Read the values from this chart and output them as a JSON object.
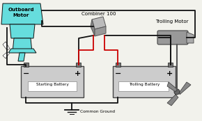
{
  "bg_color": "#f2f2ec",
  "outboard_motor_label": "Outboard\nMotor",
  "trolling_motor_label": "Trolling Motor",
  "combiner_label": "Combiner 100",
  "starting_battery_label": "Starting Battery",
  "trolling_battery_label": "Trolling Battery",
  "common_ground_label": "Common Ground",
  "wire_color_black": "#111111",
  "wire_color_red": "#cc0000",
  "battery_fill": "#cccccc",
  "battery_border": "#444444",
  "outboard_color": "#66dddd",
  "combiner_color": "#aaaaaa",
  "combiner_dark": "#888888",
  "trolling_motor_color": "#999999",
  "small_fontsize": 5.0,
  "tiny_fontsize": 4.2
}
